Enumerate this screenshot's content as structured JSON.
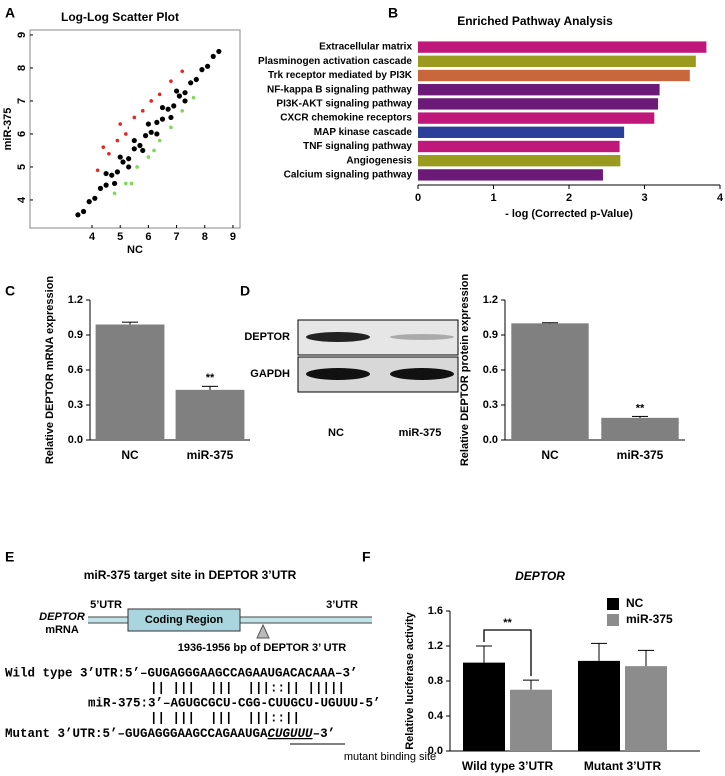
{
  "chart_data": [
    {
      "label": "A",
      "type": "scatter",
      "title": "Log-Log Scatter Plot",
      "xlabel": "NC",
      "ylabel": "miR-375",
      "xlim": [
        1.8,
        9.25
      ],
      "ylim": [
        3.15,
        9.15
      ],
      "xticks": [
        4,
        5,
        6,
        7,
        8,
        9
      ],
      "yticks": [
        4,
        5,
        6,
        7,
        8,
        9
      ],
      "series": [
        {
          "color": "#000000",
          "x": [
            3.5,
            3.7,
            3.9,
            4.1,
            4.3,
            4.5,
            4.7,
            4.9,
            5.1,
            5.3,
            5.5,
            5.7,
            5.9,
            6.1,
            6.3,
            6.5,
            6.7,
            6.9,
            7.1,
            7.3,
            7.5,
            7.7,
            7.9,
            8.1,
            8.3,
            8.5,
            4.5,
            5.0,
            5.5,
            6.0,
            6.5,
            7.0,
            4.8,
            5.3,
            5.8,
            6.3,
            6.8,
            7.3
          ],
          "values": [
            3.55,
            3.65,
            3.95,
            4.05,
            4.35,
            4.45,
            4.75,
            4.85,
            5.15,
            5.25,
            5.55,
            5.65,
            5.95,
            6.05,
            6.35,
            6.45,
            6.75,
            6.85,
            7.15,
            7.25,
            7.55,
            7.65,
            7.95,
            8.05,
            8.35,
            8.5,
            4.8,
            5.3,
            5.8,
            6.3,
            6.8,
            7.3,
            4.5,
            5.0,
            5.5,
            6.0,
            6.5,
            7.0
          ]
        },
        {
          "color": "#e8231f",
          "x": [
            4.2,
            4.4,
            4.6,
            4.9,
            5.0,
            5.2,
            5.5,
            5.8,
            6.1,
            6.4,
            6.8,
            7.2
          ],
          "values": [
            4.9,
            5.6,
            5.4,
            5.8,
            6.3,
            6.0,
            6.5,
            6.7,
            7.0,
            7.2,
            7.6,
            7.9
          ]
        },
        {
          "color": "#7ed957",
          "x": [
            4.8,
            5.2,
            5.4,
            5.6,
            6.0,
            6.2,
            6.4,
            6.8,
            7.2,
            7.6
          ],
          "values": [
            4.2,
            4.5,
            4.5,
            5.0,
            5.3,
            5.5,
            5.8,
            6.2,
            6.7,
            7.1
          ]
        }
      ]
    },
    {
      "label": "B",
      "type": "hbar",
      "title": "Enriched Pathway Analysis",
      "xlabel": "- log (Corrected p-Value)",
      "categories": [
        "Extracellular matrix",
        "Plasminogen activation cascade",
        "Trk receptor mediated by PI3K",
        "NF-kappa B signaling pathway",
        "PI3K-AKT signaling pathway",
        "CXCR chemokine receptors",
        "MAP kinase cascade",
        "TNF signaling pathway",
        "Angiogenesis",
        "Calcium signaling pathway"
      ],
      "values": [
        3.82,
        3.68,
        3.6,
        3.2,
        3.18,
        3.13,
        2.73,
        2.67,
        2.68,
        2.45
      ],
      "colors": [
        "#c0177a",
        "#9a9a1e",
        "#c8663c",
        "#6c1a78",
        "#6c1a78",
        "#c0177a",
        "#2a3f9a",
        "#c0177a",
        "#9a9a1e",
        "#6c1a78"
      ],
      "xlim": [
        0,
        4
      ],
      "xticks": [
        0,
        1,
        2,
        3,
        4
      ]
    },
    {
      "label": "C",
      "type": "bar",
      "ylabel": "Relative DEPTOR mRNA expression",
      "categories": [
        "NC",
        "miR-375"
      ],
      "values": [
        0.99,
        0.43
      ],
      "errors": [
        0.02,
        0.03
      ],
      "color": "#808080",
      "ylim": [
        0,
        1.2
      ],
      "yticks": [
        {
          "value": 0,
          "label": "0.0"
        },
        0.3,
        0.6,
        0.9,
        1.2
      ],
      "annotation": "**"
    },
    {
      "label": "D",
      "type": "bar",
      "blot": {
        "rows": [
          "DEPTOR",
          "GAPDH"
        ],
        "lanes": [
          "NC",
          "miR-375"
        ]
      },
      "ylabel": "Relative DEPTOR protein expression",
      "categories": [
        "NC",
        "miR-375"
      ],
      "values": [
        1,
        0.19
      ],
      "errors": [
        0.005,
        0.012
      ],
      "color": "#808080",
      "ylim": [
        0,
        1.2
      ],
      "yticks": [
        {
          "value": 0,
          "label": "0.0"
        },
        0.3,
        0.6,
        0.9,
        1.2
      ],
      "annotation": "**"
    },
    {
      "label": "F",
      "type": "grouped_bar",
      "title": "DEPTOR",
      "ylabel": "Relative luciferase activity",
      "categories": [
        "Wild type 3’UTR",
        "Mutant 3’UTR"
      ],
      "series": [
        {
          "name": "NC",
          "color": "#000000",
          "values": [
            1.01,
            1.03
          ],
          "errors": [
            0.19,
            0.2
          ]
        },
        {
          "name": "miR-375",
          "color": "#8c8c8c",
          "values": [
            0.7,
            0.97
          ],
          "errors": [
            0.11,
            0.18
          ]
        }
      ],
      "ylim": [
        0,
        1.6
      ],
      "yticks": [
        {
          "value": 0,
          "label": "0.0"
        },
        0.4,
        0.8,
        1.2,
        1.6
      ],
      "annotation": "**",
      "legend": "upper right"
    }
  ],
  "diagram": {
    "label": "E",
    "title": "miR-375 target site in DEPTOR 3’UTR",
    "gene": "DEPTOR",
    "gene_sub": "mRNA",
    "utr5": "5’UTR",
    "coding": "Coding Region",
    "utr3": "3’UTR",
    "site": "1936-1956 bp of DEPTOR 3’ UTR",
    "wild": "Wild type 3’UTR:5’–GUGAGGGAAGCCAGAAUGACACAAA–3’",
    "pairs1": "|| |||  |||  |||::|| |||||",
    "mirna": "miR-375:3’–AGUGCGCU-CGG-CUUGCU-UGUUU-5’",
    "pairs2": "|| |||  |||  |||::||",
    "mutant": {
      "prefix": "Mutant 3’UTR:5’–GUGAGGGAAGCCAGAAUGA",
      "site": "CUGUUU",
      "suffix": "–3’"
    },
    "mutant_note": "mutant binding site"
  }
}
